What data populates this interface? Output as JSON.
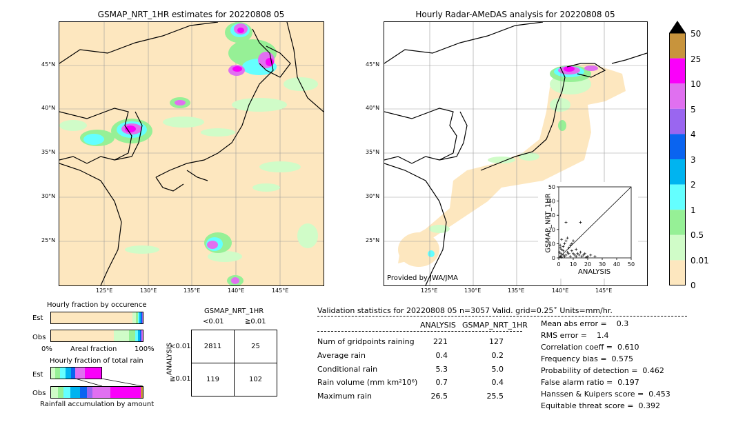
{
  "left_map": {
    "title": "GSMAP_NRT_1HR estimates for 20220808 05",
    "lat_ticks": [
      "45°N",
      "40°N",
      "35°N",
      "30°N",
      "25°N"
    ],
    "lon_ticks": [
      "125°E",
      "130°E",
      "135°E",
      "140°E",
      "145°E"
    ]
  },
  "right_map": {
    "title": "Hourly Radar-AMeDAS analysis for 20220808 05",
    "lat_ticks": [
      "45°N",
      "40°N",
      "35°N",
      "30°N",
      "25°N"
    ],
    "lon_ticks": [
      "125°E",
      "130°E",
      "135°E",
      "140°E",
      "145°E"
    ],
    "credit": "Provided by JWA/JMA"
  },
  "colorbar": {
    "labels": [
      "50",
      "25",
      "10",
      "5",
      "4",
      "3",
      "2",
      "1",
      "0.5",
      "0.01",
      "0"
    ],
    "colors": [
      "#c8943c",
      "#fa00fa",
      "#e070f0",
      "#9a66f0",
      "#0a64f0",
      "#00b4f0",
      "#64ffff",
      "#96f096",
      "#d0fcc8",
      "#fde7bf"
    ],
    "overflow_color": "#000000"
  },
  "occurrence": {
    "title": "Hourly fraction by occurence",
    "rows": [
      "Est",
      "Obs"
    ],
    "axis_left": "0%",
    "axis_mid": "Areal fraction",
    "axis_right": "100%"
  },
  "total_rain": {
    "title": "Hourly fraction of total rain",
    "rows": [
      "Est",
      "Obs"
    ],
    "footer": "Rainfall accumulation by amount"
  },
  "contingency": {
    "title": "GSMAP_NRT_1HR",
    "col_headers": [
      "<0.01",
      "≧0.01"
    ],
    "row_axis": "ANALYSIS",
    "row_headers": [
      "<0.01",
      "≧0.01"
    ],
    "values": [
      [
        "2811",
        "25"
      ],
      [
        "119",
        "102"
      ]
    ]
  },
  "validation": {
    "header": "Validation statistics for 20220808 05  n=3057 Valid. grid=0.25˚ Units=mm/hr.",
    "col1": "ANALYSIS",
    "col2": "GSMAP_NRT_1HR",
    "rows": [
      {
        "label": "Num of gridpoints raining",
        "a": "221",
        "g": "127"
      },
      {
        "label": "Average rain",
        "a": "0.4",
        "g": "0.2"
      },
      {
        "label": "Conditional rain",
        "a": "5.3",
        "g": "5.0"
      },
      {
        "label": "Rain volume (mm km²10⁶)",
        "a": "0.7",
        "g": "0.4"
      },
      {
        "label": "Maximum rain",
        "a": "26.5",
        "g": "25.5"
      }
    ],
    "scores": [
      "Mean abs error =    0.3",
      "RMS error =    1.4",
      "Correlation coeff =  0.610",
      "Frequency bias =  0.575",
      "Probability of detection =  0.462",
      "False alarm ratio =  0.197",
      "Hanssen & Kuipers score =  0.453",
      "Equitable threat score =  0.392"
    ]
  },
  "chart_data": {
    "type": "scatter",
    "xlabel": "ANALYSIS",
    "ylabel": "GSMAP_NRT_1HR",
    "xlim": [
      0,
      50
    ],
    "ylim": [
      0,
      50
    ],
    "x_ticks": [
      "0",
      "10",
      "20",
      "30",
      "40",
      "50"
    ],
    "y_ticks": [
      "0",
      "10",
      "20",
      "30",
      "40",
      "50"
    ],
    "points": [
      {
        "x": 1,
        "y": 1
      },
      {
        "x": 2,
        "y": 0.5
      },
      {
        "x": 3,
        "y": 2
      },
      {
        "x": 1.5,
        "y": 3
      },
      {
        "x": 4,
        "y": 1
      },
      {
        "x": 5,
        "y": 2
      },
      {
        "x": 6,
        "y": 4
      },
      {
        "x": 2,
        "y": 6
      },
      {
        "x": 3,
        "y": 8
      },
      {
        "x": 7,
        "y": 3
      },
      {
        "x": 8,
        "y": 1
      },
      {
        "x": 9,
        "y": 5
      },
      {
        "x": 10,
        "y": 3
      },
      {
        "x": 11,
        "y": 2
      },
      {
        "x": 12,
        "y": 6
      },
      {
        "x": 4,
        "y": 10
      },
      {
        "x": 5,
        "y": 12
      },
      {
        "x": 1,
        "y": 9
      },
      {
        "x": 2,
        "y": 13
      },
      {
        "x": 6,
        "y": 14
      },
      {
        "x": 8,
        "y": 9
      },
      {
        "x": 9,
        "y": 10
      },
      {
        "x": 10,
        "y": 12
      },
      {
        "x": 12,
        "y": 1
      },
      {
        "x": 14,
        "y": 2
      },
      {
        "x": 15,
        "y": 4
      },
      {
        "x": 16,
        "y": 1
      },
      {
        "x": 18,
        "y": 3
      },
      {
        "x": 20,
        "y": 1
      },
      {
        "x": 22,
        "y": 2
      },
      {
        "x": 5,
        "y": 25
      },
      {
        "x": 15,
        "y": 25
      },
      {
        "x": 0.5,
        "y": 4
      },
      {
        "x": 1,
        "y": 7
      },
      {
        "x": 3,
        "y": 5
      },
      {
        "x": 7,
        "y": 7
      },
      {
        "x": 13,
        "y": 3
      },
      {
        "x": 17,
        "y": 2
      },
      {
        "x": 25,
        "y": 1
      },
      {
        "x": 19,
        "y": 0.5
      }
    ]
  }
}
